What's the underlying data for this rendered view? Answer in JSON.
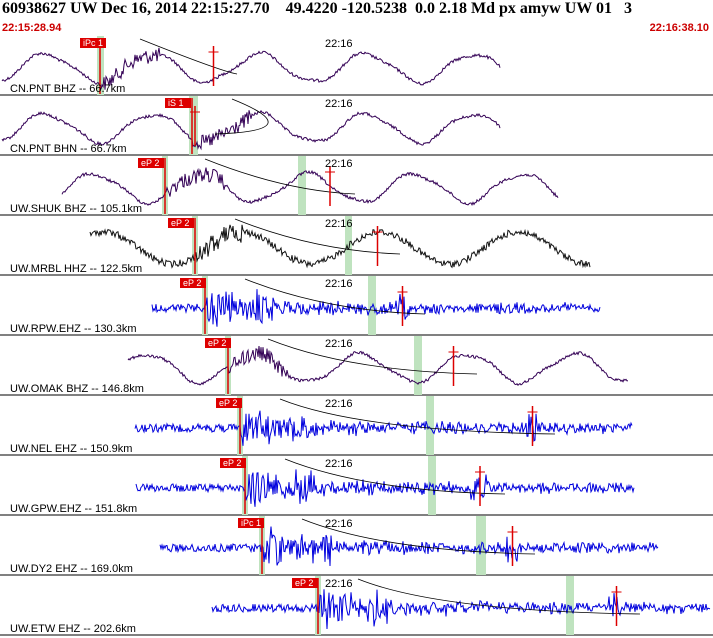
{
  "header": {
    "title": "60938627 UW Dec 16, 2014 22:15:27.70    49.4220 -120.5238  0.0 2.18 Md px amyw UW 01   3",
    "start_time": "22:15:28.94",
    "end_time": "22:16:38.10"
  },
  "colors": {
    "pick_marker": "#dd0000",
    "s_window": "#bfe3bf",
    "trace_blue": "#0000dd",
    "trace_purple": "#330055",
    "trace_black": "#111111",
    "separator": "#000000"
  },
  "chart_data": {
    "type": "line",
    "x_unit": "time",
    "time_range": [
      "22:15:28.94",
      "22:16:38.10"
    ],
    "minute_tick_label": "22:16",
    "traces": [
      {
        "name": "CN.PNT BHZ -- 66.7km",
        "pick": "iPc 1",
        "color": "purple",
        "kind": "long"
      },
      {
        "name": "CN.PNT BHN -- 66.7km",
        "pick": "iS 1",
        "color": "purple",
        "kind": "long"
      },
      {
        "name": "UW.SHUK BHZ -- 105.1km",
        "pick": "eP 2",
        "color": "purple",
        "kind": "long"
      },
      {
        "name": "UW.MRBL HHZ -- 122.5km",
        "pick": "eP 2",
        "color": "black",
        "kind": "longhf"
      },
      {
        "name": "UW.RPW.EHZ -- 130.3km",
        "pick": "eP 2",
        "color": "blue",
        "kind": "short"
      },
      {
        "name": "UW.OMAK BHZ -- 146.8km",
        "pick": "eP 2",
        "color": "purple",
        "kind": "long"
      },
      {
        "name": "UW.NEL EHZ -- 150.9km",
        "pick": "eP 2",
        "color": "blue",
        "kind": "short"
      },
      {
        "name": "UW.GPW.EHZ -- 151.8km",
        "pick": "eP 2",
        "color": "blue",
        "kind": "short"
      },
      {
        "name": "UW.DY2 EHZ -- 169.0km",
        "pick": "iPc 1",
        "color": "blue",
        "kind": "short"
      },
      {
        "name": "UW.ETW EHZ -- 202.6km",
        "pick": "eP 2",
        "color": "blue",
        "kind": "short"
      }
    ]
  }
}
